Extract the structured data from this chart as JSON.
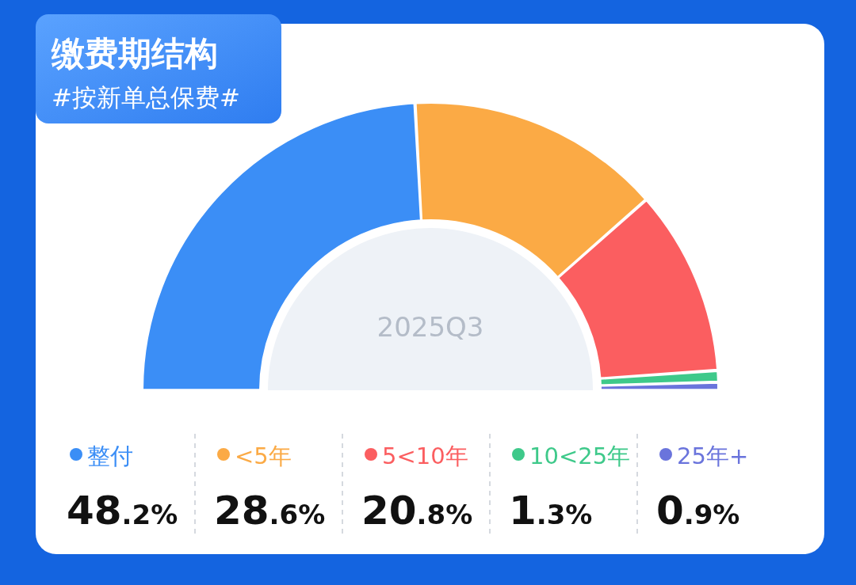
{
  "chart_data": {
    "type": "donut",
    "title": "缴费期结构",
    "subtitle": "#按新单总保费#",
    "categories": [
      "整付",
      "<5年",
      "5<10年",
      "10<25年",
      "25年+"
    ],
    "values": [
      48.2,
      28.6,
      20.8,
      1.3,
      0.9
    ],
    "colors": [
      "#3b8ef6",
      "#fbaa45",
      "#fb5e60",
      "#3ec98a",
      "#6a74dc"
    ],
    "value_labels": [
      "48.2%",
      "28.6%",
      "20.8%",
      "1.3%",
      "0.9%"
    ],
    "annotations": [
      "2025Q3"
    ],
    "legend": "bottom"
  }
}
